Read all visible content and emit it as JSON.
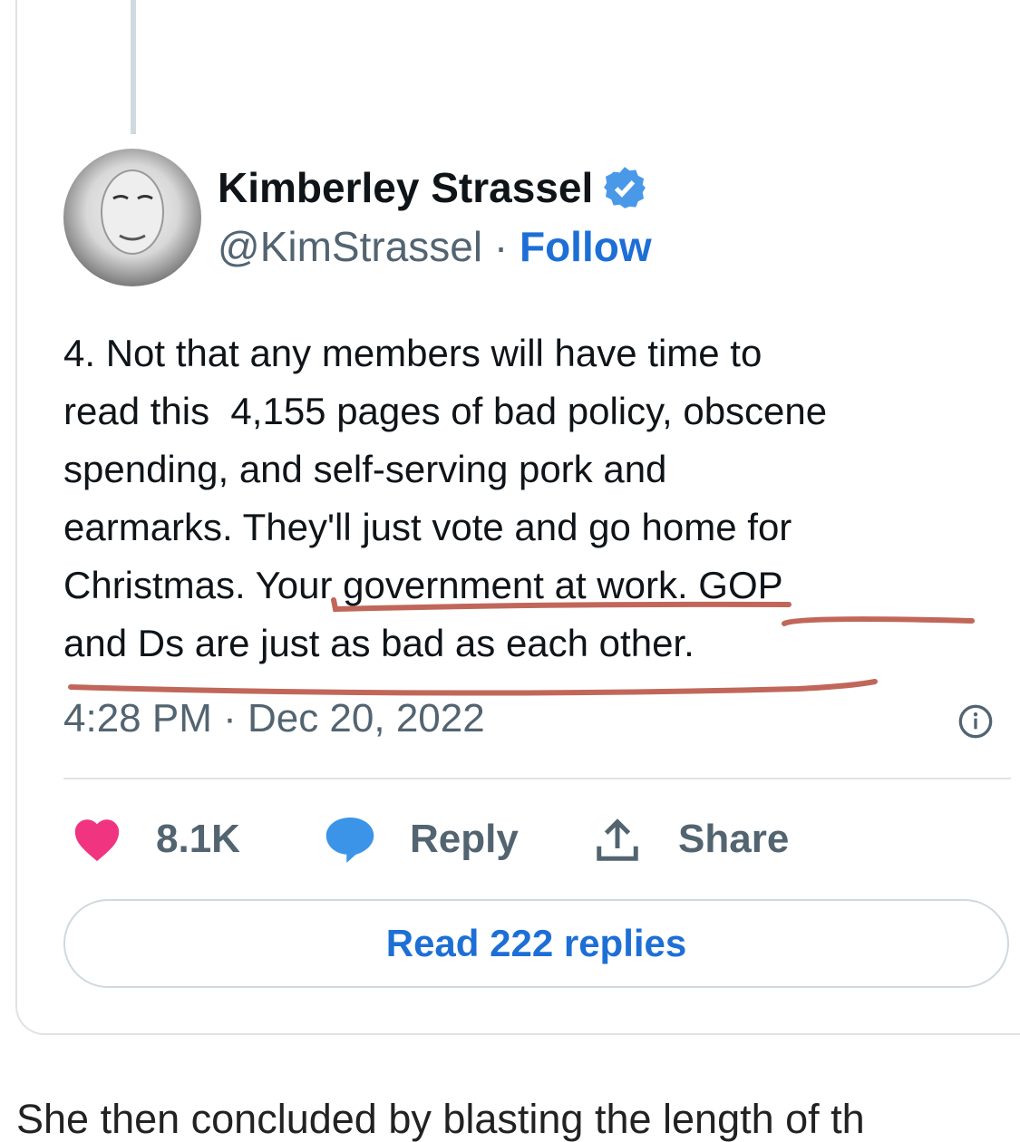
{
  "tweet": {
    "author_name": "Kimberley Strassel",
    "handle": "@KimStrassel",
    "separator": "·",
    "follow_label": "Follow",
    "text": "4. Not that any members will have time to\nread this  4,155 pages of bad policy, obscene\nspending, and self-serving pork and\nearmarks. They'll just vote and go home for\nChristmas. Your government at work. GOP\nand Ds are just as bad as each other.",
    "timestamp": "4:28 PM · Dec 20, 2022",
    "likes": "8.1K",
    "reply_label": "Reply",
    "share_label": "Share",
    "read_replies_label": "Read 222 replies"
  },
  "article_text": "She then concluded by blasting the length of th",
  "colors": {
    "accent": "#1d6fd6",
    "heart": "#f0347f",
    "reply_bubble": "#3b94e8",
    "underline": "#c0675a",
    "muted": "#536471"
  },
  "icons": [
    "verified-badge-icon",
    "info-icon",
    "heart-icon",
    "reply-bubble-icon",
    "share-upload-icon"
  ]
}
